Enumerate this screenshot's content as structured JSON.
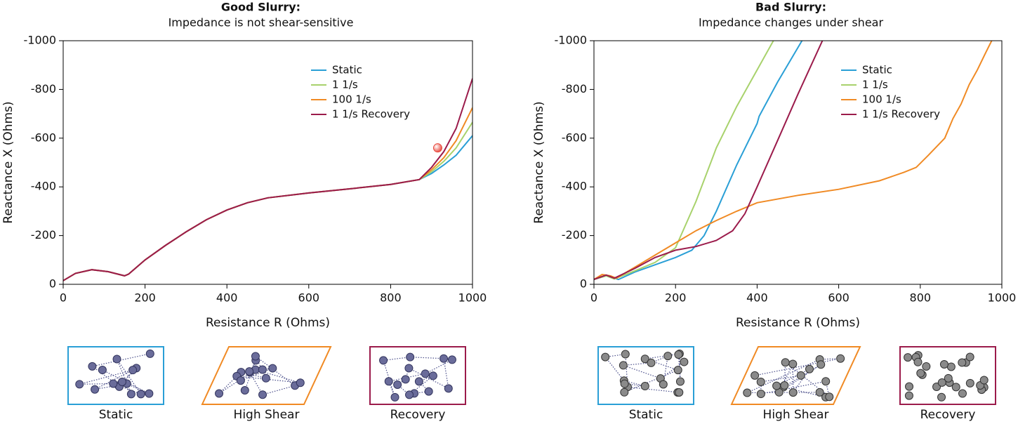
{
  "chart_data": [
    {
      "type": "line",
      "title": "Good Slurry:",
      "subtitle": "Impedance is not shear-sensitive",
      "x_label": "Resistance R (Ohms)",
      "y_label": "Reactance X (Ohms)",
      "xlim": [
        0,
        1000
      ],
      "xticks": [
        0,
        200,
        400,
        600,
        800,
        1000
      ],
      "ylim": [
        0,
        -1000
      ],
      "yticks": [
        0,
        -200,
        -400,
        -600,
        -800,
        -1000
      ],
      "series": [
        {
          "name": "Static",
          "color": "#2a9fd6",
          "x": [
            0,
            30,
            70,
            110,
            150,
            160,
            200,
            250,
            300,
            350,
            400,
            450,
            500,
            600,
            700,
            800,
            870,
            900,
            930,
            960,
            1000
          ],
          "values": [
            -15,
            -45,
            -60,
            -52,
            -35,
            -42,
            -100,
            -160,
            -215,
            -265,
            -305,
            -335,
            -355,
            -375,
            -392,
            -410,
            -430,
            -455,
            -490,
            -530,
            -610
          ]
        },
        {
          "name": "1 1/s",
          "color": "#a8d26c",
          "x": [
            0,
            30,
            70,
            110,
            150,
            160,
            200,
            250,
            300,
            350,
            400,
            450,
            500,
            600,
            700,
            800,
            870,
            900,
            930,
            960,
            1000
          ],
          "values": [
            -15,
            -45,
            -60,
            -52,
            -35,
            -42,
            -100,
            -160,
            -215,
            -265,
            -305,
            -335,
            -355,
            -375,
            -392,
            -410,
            -430,
            -462,
            -505,
            -560,
            -665
          ]
        },
        {
          "name": "100 1/s",
          "color": "#f08a24",
          "x": [
            0,
            30,
            70,
            110,
            150,
            160,
            200,
            250,
            300,
            350,
            400,
            450,
            500,
            600,
            700,
            800,
            870,
            900,
            930,
            960,
            1000
          ],
          "values": [
            -15,
            -45,
            -60,
            -52,
            -35,
            -42,
            -100,
            -160,
            -215,
            -265,
            -305,
            -335,
            -355,
            -375,
            -392,
            -410,
            -430,
            -470,
            -520,
            -590,
            -725
          ]
        },
        {
          "name": "1 1/s Recovery",
          "color": "#9b1b4b",
          "x": [
            0,
            30,
            70,
            110,
            150,
            160,
            200,
            250,
            300,
            350,
            400,
            450,
            500,
            600,
            700,
            800,
            870,
            900,
            930,
            960,
            1000
          ],
          "values": [
            -15,
            -45,
            -60,
            -52,
            -35,
            -42,
            -100,
            -160,
            -215,
            -265,
            -305,
            -335,
            -355,
            -375,
            -392,
            -410,
            -430,
            -480,
            -545,
            -640,
            -845
          ]
        }
      ],
      "marker": {
        "x": 915,
        "y": -560,
        "color": "#e8463a"
      },
      "panels": [
        {
          "label": "Static",
          "color": "#2a9fd6"
        },
        {
          "label": "High Shear",
          "color": "#f08a24"
        },
        {
          "label": "Recovery",
          "color": "#9b1b4b"
        }
      ]
    },
    {
      "type": "line",
      "title": "Bad Slurry:",
      "subtitle": "Impedance changes under shear",
      "x_label": "Resistance R (Ohms)",
      "y_label": "Reactance X (Ohms)",
      "xlim": [
        0,
        1000
      ],
      "xticks": [
        0,
        200,
        400,
        600,
        800,
        1000
      ],
      "ylim": [
        0,
        -1000
      ],
      "yticks": [
        0,
        -200,
        -400,
        -600,
        -800,
        -1000
      ],
      "series": [
        {
          "name": "Static",
          "color": "#2a9fd6",
          "x": [
            0,
            30,
            50,
            60,
            100,
            150,
            200,
            240,
            270,
            300,
            350,
            400,
            405,
            450,
            510
          ],
          "values": [
            -20,
            -35,
            -25,
            -20,
            -50,
            -80,
            -110,
            -140,
            -200,
            -300,
            -490,
            -660,
            -690,
            -830,
            -1000
          ]
        },
        {
          "name": "1 1/s",
          "color": "#a8d26c",
          "x": [
            0,
            30,
            50,
            100,
            150,
            200,
            250,
            300,
            350,
            400,
            440
          ],
          "values": [
            -20,
            -35,
            -22,
            -55,
            -90,
            -150,
            -340,
            -560,
            -730,
            -880,
            -1000
          ]
        },
        {
          "name": "100 1/s",
          "color": "#f08a24",
          "x": [
            0,
            20,
            40,
            55,
            100,
            150,
            200,
            250,
            300,
            350,
            400,
            500,
            600,
            700,
            760,
            790,
            820,
            860,
            880,
            900,
            920,
            940,
            960,
            975
          ],
          "values": [
            -20,
            -40,
            -35,
            -25,
            -70,
            -120,
            -170,
            -220,
            -262,
            -300,
            -335,
            -365,
            -390,
            -425,
            -460,
            -480,
            -530,
            -600,
            -680,
            -740,
            -820,
            -880,
            -950,
            -1000
          ]
        },
        {
          "name": "1 1/s Recovery",
          "color": "#9b1b4b",
          "x": [
            0,
            30,
            50,
            100,
            150,
            200,
            250,
            300,
            340,
            370,
            400,
            450,
            500,
            560
          ],
          "values": [
            -20,
            -38,
            -25,
            -65,
            -110,
            -140,
            -155,
            -180,
            -220,
            -290,
            -400,
            -590,
            -780,
            -1000
          ]
        }
      ],
      "panels": [
        {
          "label": "Static",
          "color": "#2a9fd6"
        },
        {
          "label": "High Shear",
          "color": "#f08a24"
        },
        {
          "label": "Recovery",
          "color": "#9b1b4b"
        }
      ]
    }
  ]
}
